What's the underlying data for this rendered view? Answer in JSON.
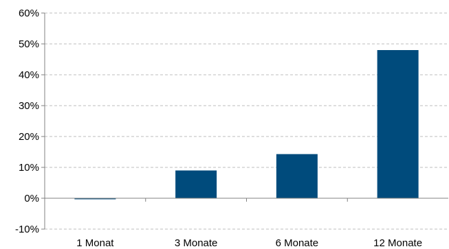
{
  "chart_data": {
    "type": "bar",
    "categories": [
      "1 Monat",
      "3 Monate",
      "6 Monate",
      "12 Monate"
    ],
    "values": [
      -0.3,
      9.0,
      14.3,
      48.0
    ],
    "ylim": [
      -10,
      60
    ],
    "yticks": [
      -10,
      0,
      10,
      20,
      30,
      40,
      50,
      60
    ],
    "ytick_labels": [
      "-10%",
      "0%",
      "10%",
      "20%",
      "30%",
      "40%",
      "50%",
      "60%"
    ],
    "grid": true,
    "bar_color": "#004b7c",
    "title": "",
    "xlabel": "",
    "ylabel": ""
  }
}
